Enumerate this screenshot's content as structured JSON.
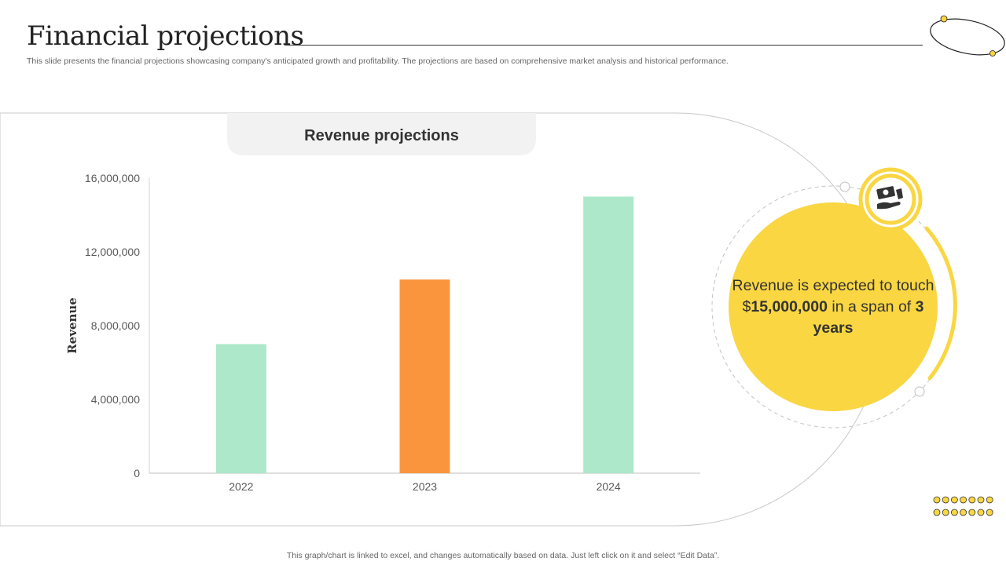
{
  "header": {
    "title": "Financial projections",
    "subtitle": "This slide presents the financial projections showcasing company's anticipated growth and profitability. The projections are based on comprehensive market analysis and historical performance."
  },
  "chart_data": {
    "type": "bar",
    "title": "Revenue projections",
    "xlabel": "",
    "ylabel": "Revenue",
    "categories": [
      "2022",
      "2023",
      "2024"
    ],
    "values": [
      7000000,
      10500000,
      15000000
    ],
    "colors": [
      "#acE8C9",
      "#FA953E",
      "#acE8C9"
    ],
    "ylim": [
      0,
      16000000
    ],
    "yticks": [
      0,
      4000000,
      8000000,
      12000000,
      16000000
    ],
    "ytick_labels": [
      "0",
      "4,000,000",
      "8,000,000",
      "12,000,000",
      "16,000,000"
    ],
    "grid": false
  },
  "callout": {
    "text_before": "Revenue is expected to touch $",
    "amount": "15,000,000",
    "text_middle": " in a span of ",
    "duration": "3 years",
    "icon": "money-hand-icon"
  },
  "footer": {
    "note": "This graph/chart is linked to excel,  and changes automatically based on data. Just left click on it and select “Edit Data”."
  },
  "colors": {
    "accent": "#F9D642",
    "callout_ring": "#F9D642",
    "panel_border": "#CCCCCC",
    "title_box": "#F2F2F2"
  }
}
